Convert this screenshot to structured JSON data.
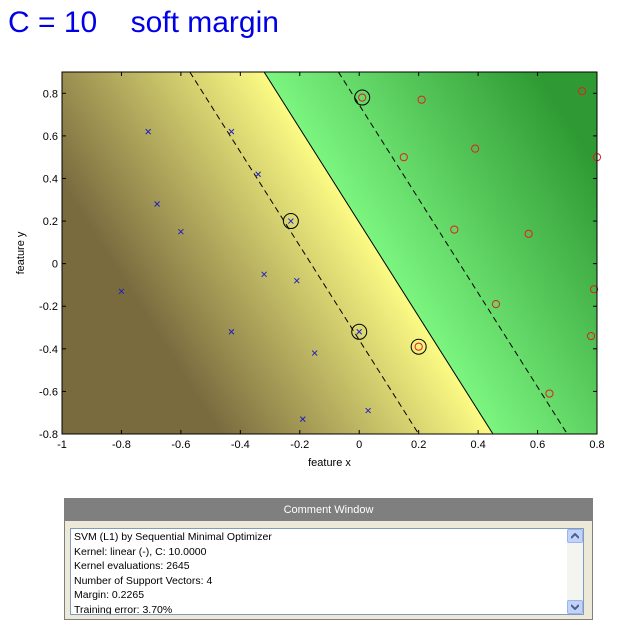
{
  "title": "C = 10    soft margin",
  "chart_data": {
    "type": "scatter",
    "xlabel": "feature x",
    "ylabel": "feature y",
    "xlim": [
      -1,
      0.8
    ],
    "ylim": [
      -0.8,
      0.9
    ],
    "xticks": [
      -1,
      -0.8,
      -0.6,
      -0.4,
      -0.2,
      0,
      0.2,
      0.4,
      0.6,
      0.8
    ],
    "yticks": [
      -0.8,
      -0.6,
      -0.4,
      -0.2,
      0,
      0.2,
      0.4,
      0.6,
      0.8
    ],
    "xtick_labels": [
      "-1",
      "-0.8",
      "-0.6",
      "-0.4",
      "-0.2",
      "0",
      "0.2",
      "0.4",
      "0.6",
      "0.8"
    ],
    "ytick_labels": [
      "-0.8",
      "-0.6",
      "-0.4",
      "-0.2",
      "0",
      "0.2",
      "0.4",
      "0.6",
      "0.8"
    ],
    "grid": false,
    "series": [
      {
        "marker": "x",
        "color": "#2222bb",
        "points": [
          [
            -0.71,
            0.62
          ],
          [
            -0.43,
            0.62
          ],
          [
            -0.34,
            0.42
          ],
          [
            -0.68,
            0.28
          ],
          [
            -0.6,
            0.15
          ],
          [
            -0.8,
            -0.13
          ],
          [
            -0.32,
            -0.05
          ],
          [
            -0.21,
            -0.08
          ],
          [
            -0.43,
            -0.32
          ],
          [
            -0.15,
            -0.42
          ],
          [
            -0.19,
            -0.73
          ],
          [
            0.03,
            -0.69
          ],
          [
            -0.23,
            0.2
          ],
          [
            0.0,
            -0.32
          ]
        ]
      },
      {
        "marker": "o",
        "color": "#e02020",
        "points": [
          [
            0.01,
            0.78
          ],
          [
            0.21,
            0.77
          ],
          [
            0.75,
            0.81
          ],
          [
            0.15,
            0.5
          ],
          [
            0.39,
            0.54
          ],
          [
            0.8,
            0.5
          ],
          [
            0.32,
            0.16
          ],
          [
            0.57,
            0.14
          ],
          [
            0.79,
            -0.12
          ],
          [
            0.46,
            -0.19
          ],
          [
            0.78,
            -0.34
          ],
          [
            0.64,
            -0.61
          ],
          [
            0.2,
            -0.39
          ]
        ]
      }
    ],
    "support_vectors": [
      [
        0.01,
        0.78
      ],
      [
        -0.23,
        0.2
      ],
      [
        0.0,
        -0.32
      ],
      [
        0.2,
        -0.39
      ]
    ],
    "decision_boundary": [
      [
        -0.32,
        0.9
      ],
      [
        0.45,
        -0.8
      ]
    ],
    "margin_lines": [
      [
        [
          -0.57,
          0.9
        ],
        [
          0.2,
          -0.8
        ]
      ],
      [
        [
          -0.07,
          0.9
        ],
        [
          0.7,
          -0.8
        ]
      ]
    ],
    "background": {
      "negative_dark": "#7a6b3f",
      "negative_light": "#fbfb84",
      "positive_light": "#7cf580",
      "positive_dark": "#2f9a33"
    }
  },
  "comment_window": {
    "title": "Comment Window",
    "lines": [
      "SVM (L1) by Sequential Minimal Optimizer",
      "Kernel: linear (-), C: 10.0000",
      "Kernel evaluations: 2645",
      "Number of Support Vectors: 4",
      "Margin: 0.2265",
      "Training error: 3.70%"
    ]
  }
}
